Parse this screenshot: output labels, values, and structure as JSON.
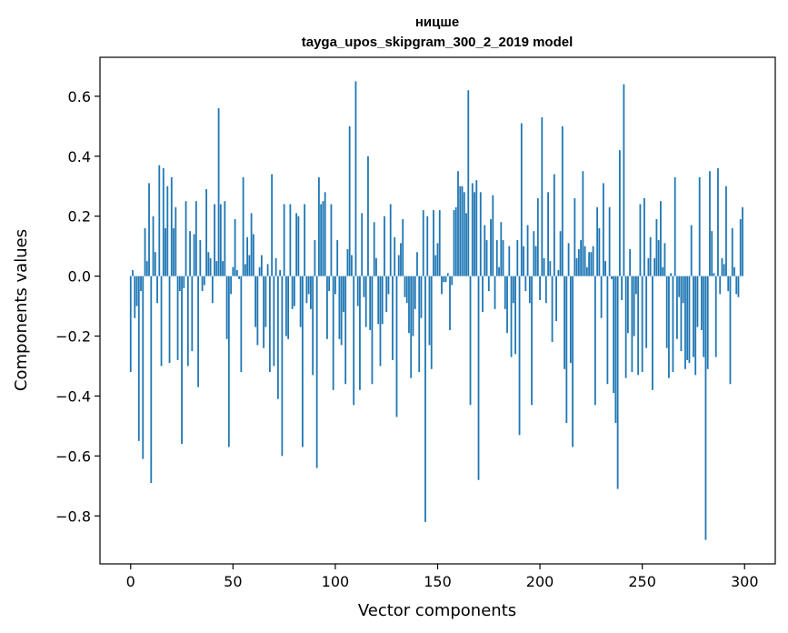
{
  "chart_data": {
    "type": "bar",
    "title_line1": "ницше",
    "title_line2": "tayga_upos_skipgram_300_2_2019 model",
    "xlabel": "Vector components",
    "ylabel": "Components values",
    "xlim": [
      -15,
      315
    ],
    "ylim": [
      -0.96,
      0.73
    ],
    "xticks": [
      0,
      50,
      100,
      150,
      200,
      250,
      300
    ],
    "xtick_labels": [
      "0",
      "50",
      "100",
      "150",
      "200",
      "250",
      "300"
    ],
    "yticks": [
      -0.8,
      -0.6,
      -0.4,
      -0.2,
      0.0,
      0.2,
      0.4,
      0.6
    ],
    "ytick_labels": [
      "−0.8",
      "−0.6",
      "−0.4",
      "−0.2",
      "0.0",
      "0.2",
      "0.4",
      "0.6"
    ],
    "bar_color": "#1f77b4",
    "values": [
      -0.32,
      0.02,
      -0.14,
      -0.1,
      -0.55,
      -0.05,
      -0.61,
      0.16,
      0.05,
      0.31,
      -0.69,
      0.2,
      0.08,
      -0.09,
      0.37,
      -0.3,
      0.36,
      0.16,
      0.3,
      -0.29,
      0.33,
      0.16,
      0.23,
      -0.28,
      -0.05,
      -0.56,
      -0.04,
      0.25,
      -0.3,
      0.15,
      -0.25,
      0.14,
      0.25,
      -0.37,
      0.12,
      -0.05,
      -0.03,
      0.29,
      0.08,
      0.06,
      -0.09,
      0.24,
      0.05,
      0.56,
      0.24,
      0.05,
      0.25,
      -0.21,
      -0.57,
      -0.06,
      0.03,
      0.19,
      0.02,
      -0.01,
      -0.32,
      0.33,
      0.04,
      0.13,
      0.07,
      0.21,
      0.14,
      -0.17,
      -0.23,
      0.03,
      0.07,
      -0.24,
      -0.17,
      0.04,
      -0.32,
      0.34,
      -0.3,
      0.06,
      -0.41,
      0.02,
      -0.6,
      0.24,
      -0.2,
      -0.21,
      0.24,
      -0.11,
      -0.1,
      0.21,
      0.2,
      -0.17,
      -0.57,
      0.24,
      -0.09,
      -0.06,
      -0.11,
      -0.33,
      0.12,
      -0.64,
      0.33,
      0.24,
      0.25,
      0.28,
      -0.21,
      -0.05,
      0.24,
      -0.38,
      -0.06,
      0.12,
      -0.21,
      -0.23,
      -0.12,
      -0.36,
      0.09,
      0.5,
      0.07,
      -0.43,
      0.65,
      -0.1,
      -0.38,
      0.21,
      -0.07,
      -0.17,
      0.4,
      -0.18,
      -0.36,
      0.18,
      0.06,
      -0.16,
      -0.3,
      -0.16,
      0.2,
      -0.12,
      -0.06,
      0.24,
      -0.28,
      0.13,
      -0.47,
      0.07,
      0.11,
      0.19,
      -0.07,
      -0.09,
      -0.19,
      -0.34,
      -0.2,
      -0.11,
      0.08,
      -0.32,
      -0.14,
      0.22,
      -0.82,
      0.2,
      -0.23,
      -0.31,
      0.22,
      0.07,
      0.11,
      0.22,
      -0.06,
      -0.02,
      -0.02,
      0.01,
      -0.18,
      -0.03,
      0.22,
      0.23,
      0.35,
      0.3,
      0.3,
      0.28,
      0.21,
      0.62,
      -0.43,
      0.31,
      0.28,
      0.32,
      -0.68,
      0.28,
      -0.12,
      0.17,
      0.12,
      -0.05,
      0.19,
      0.27,
      -0.11,
      0.12,
      0.03,
      0.18,
      0.12,
      -0.11,
      -0.19,
      0.1,
      -0.27,
      -0.09,
      -0.26,
      0.12,
      -0.53,
      0.51,
      0.1,
      -0.05,
      0.17,
      -0.09,
      -0.43,
      0.15,
      0.1,
      0.26,
      -0.08,
      0.53,
      0.06,
      -0.09,
      0.28,
      0.05,
      -0.22,
      0.34,
      -0.15,
      0.02,
      0.15,
      0.5,
      -0.31,
      -0.49,
      0.11,
      -0.29,
      -0.57,
      0.26,
      0.06,
      0.09,
      0.12,
      0.35,
      0.1,
      0.03,
      0.08,
      0.08,
      0.1,
      -0.43,
      0.23,
      0.16,
      -0.14,
      0.31,
      0.05,
      -0.36,
      0.23,
      -0.01,
      -0.39,
      -0.49,
      -0.71,
      0.42,
      -0.08,
      0.64,
      -0.34,
      -0.19,
      0.09,
      -0.32,
      -0.2,
      -0.06,
      -0.33,
      0.24,
      -0.32,
      0.26,
      -0.24,
      0.06,
      0.13,
      -0.38,
      0.06,
      0.19,
      0.12,
      0.25,
      0.03,
      0.11,
      -0.24,
      -0.34,
      0.01,
      -0.32,
      0.33,
      -0.21,
      -0.07,
      -0.25,
      -0.09,
      -0.31,
      -0.28,
      -0.29,
      0.17,
      -0.27,
      -0.33,
      -0.17,
      0.33,
      -0.18,
      -0.27,
      -0.88,
      -0.31,
      0.35,
      0.15,
      0.01,
      -0.27,
      0.36,
      -0.06,
      0.06,
      0.04,
      0.3,
      -0.05,
      -0.36,
      0.16,
      0.03,
      -0.06,
      -0.07,
      0.19,
      0.23
    ]
  }
}
